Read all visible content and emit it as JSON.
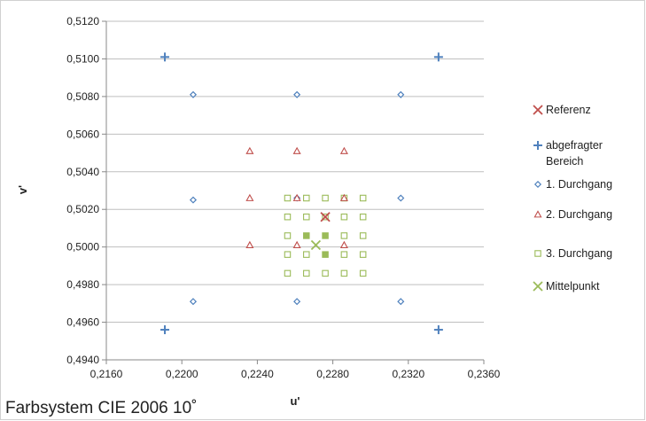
{
  "caption": "Farbsystem CIE 2006 10˚",
  "chart_data": {
    "type": "scatter",
    "title": "",
    "xlabel": "u'",
    "ylabel": "v'",
    "xlim": [
      0.216,
      0.236
    ],
    "ylim": [
      0.494,
      0.512
    ],
    "x_ticks": [
      "0,2160",
      "0,2200",
      "0,2240",
      "0,2280",
      "0,2320",
      "0,2360"
    ],
    "x_tick_values": [
      0.216,
      0.22,
      0.224,
      0.228,
      0.232,
      0.236
    ],
    "y_ticks": [
      "0,4940",
      "0,4960",
      "0,4980",
      "0,5000",
      "0,5020",
      "0,5040",
      "0,5060",
      "0,5080",
      "0,5100",
      "0,5120"
    ],
    "y_tick_values": [
      0.494,
      0.496,
      0.498,
      0.5,
      0.502,
      0.504,
      0.506,
      0.508,
      0.51,
      0.512
    ],
    "grid": "horizontal",
    "legend_position": "right",
    "series": [
      {
        "name": "Referenz",
        "marker": "x",
        "color": "#c0504d",
        "points": [
          [
            0.2276,
            0.5016
          ]
        ]
      },
      {
        "name": "abgefragter\nBereich",
        "marker": "plus",
        "color": "#4f81bd",
        "points": [
          [
            0.2191,
            0.5101
          ],
          [
            0.2336,
            0.5101
          ],
          [
            0.2191,
            0.4956
          ],
          [
            0.2336,
            0.4956
          ]
        ]
      },
      {
        "name": "1. Durchgang",
        "marker": "diamond",
        "color": "#4f81bd",
        "points": [
          [
            0.2206,
            0.5081
          ],
          [
            0.2261,
            0.5081
          ],
          [
            0.2316,
            0.5081
          ],
          [
            0.2206,
            0.5025
          ],
          [
            0.2261,
            0.5026
          ],
          [
            0.2316,
            0.5026
          ],
          [
            0.2206,
            0.4971
          ],
          [
            0.2261,
            0.4971
          ],
          [
            0.2316,
            0.4971
          ]
        ]
      },
      {
        "name": "2. Durchgang",
        "marker": "triangle",
        "color": "#c0504d",
        "points": [
          [
            0.2236,
            0.5051
          ],
          [
            0.2261,
            0.5051
          ],
          [
            0.2286,
            0.5051
          ],
          [
            0.2236,
            0.5026
          ],
          [
            0.2261,
            0.5026
          ],
          [
            0.2286,
            0.5026
          ],
          [
            0.2236,
            0.5001
          ],
          [
            0.2261,
            0.5001
          ],
          [
            0.2286,
            0.5001
          ]
        ]
      },
      {
        "name": "3. Durchgang",
        "marker": "square",
        "color": "#9bbb59",
        "points": [
          [
            0.2256,
            0.5026
          ],
          [
            0.2266,
            0.5026
          ],
          [
            0.2276,
            0.5026
          ],
          [
            0.2286,
            0.5026
          ],
          [
            0.2296,
            0.5026
          ],
          [
            0.2256,
            0.5016
          ],
          [
            0.2266,
            0.5016
          ],
          [
            0.2276,
            0.5016
          ],
          [
            0.2286,
            0.5016
          ],
          [
            0.2296,
            0.5016
          ],
          [
            0.2256,
            0.5006
          ],
          [
            0.2266,
            0.5006
          ],
          [
            0.2276,
            0.5006
          ],
          [
            0.2286,
            0.5006
          ],
          [
            0.2296,
            0.5006
          ],
          [
            0.2256,
            0.4996
          ],
          [
            0.2266,
            0.4996
          ],
          [
            0.2276,
            0.4996
          ],
          [
            0.2286,
            0.4996
          ],
          [
            0.2296,
            0.4996
          ],
          [
            0.2256,
            0.4986
          ],
          [
            0.2266,
            0.4986
          ],
          [
            0.2276,
            0.4986
          ],
          [
            0.2286,
            0.4986
          ],
          [
            0.2296,
            0.4986
          ]
        ],
        "filled_points": [
          [
            0.2266,
            0.5006
          ],
          [
            0.2276,
            0.5006
          ],
          [
            0.2276,
            0.4996
          ]
        ]
      },
      {
        "name": "Mittelpunkt",
        "marker": "x",
        "color": "#9bbb59",
        "points": [
          [
            0.2271,
            0.5001
          ]
        ]
      }
    ]
  }
}
